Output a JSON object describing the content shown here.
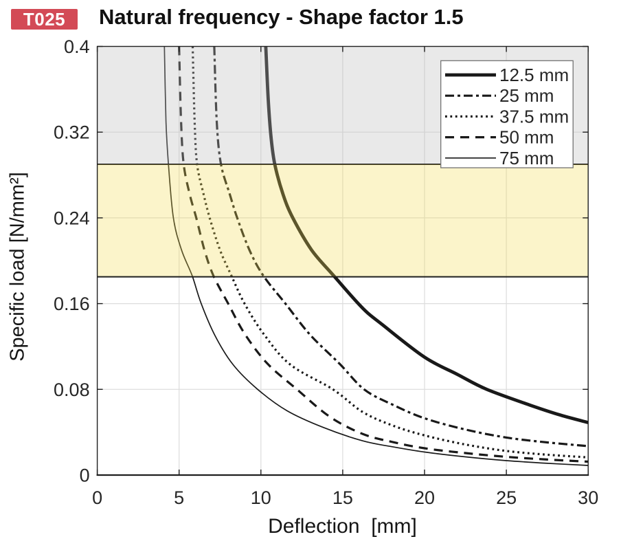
{
  "header": {
    "badge": {
      "label": "T025",
      "bg_color": "#d34a56",
      "text_color": "#ffffff"
    },
    "title": "Natural frequency - Shape factor 1.5"
  },
  "chart_data": {
    "type": "line",
    "title": "Natural frequency - Shape factor 1.5",
    "xlabel": "Deflection  [mm]",
    "ylabel": "Specific load [N/mm²]",
    "xlim": [
      0,
      30
    ],
    "ylim": [
      0,
      0.4
    ],
    "xticks": [
      0,
      5,
      10,
      15,
      20,
      25,
      30
    ],
    "xtick_labels": [
      "0",
      "5",
      "10",
      "15",
      "20",
      "25",
      "30"
    ],
    "yticks": [
      0,
      0.08,
      0.16,
      0.24,
      0.32,
      0.4
    ],
    "ytick_labels": [
      "0",
      "0.08",
      "0.16",
      "0.24",
      "0.32",
      "0.4"
    ],
    "grid": true,
    "grid_color": "#dcdcdc",
    "axis_color": "#1f1f1f",
    "curve_color": "#191919",
    "plot_background": "#ffffff",
    "shaded_bands": [
      {
        "y_from": 0.29,
        "y_to": 0.4,
        "overlay_fill": "rgba(187,187,187,0.33)",
        "appearance_over_white": "#ececec",
        "edge_color": "#1f1f1f"
      },
      {
        "y_from": 0.185,
        "y_to": 0.29,
        "overlay_fill": "rgba(242,219,85,0.31)",
        "appearance_over_white": "#faf1c9",
        "edge_color": "#1f1f1f"
      }
    ],
    "legend": {
      "position": "top-right",
      "border_color": "#737373",
      "background": "#ffffff",
      "entries": [
        "12.5 mm",
        "25 mm",
        "37.5 mm",
        "50 mm",
        "75 mm"
      ]
    },
    "series": [
      {
        "name": "12.5 mm",
        "line_style": "solid-thick",
        "line_width": 4.8,
        "dash": null,
        "points": [
          [
            10.3,
            0.4
          ],
          [
            10.45,
            0.35
          ],
          [
            10.62,
            0.315
          ],
          [
            10.85,
            0.29
          ],
          [
            11.35,
            0.262
          ],
          [
            11.95,
            0.24
          ],
          [
            13.1,
            0.21
          ],
          [
            14.45,
            0.186
          ],
          [
            16.2,
            0.156
          ],
          [
            17.45,
            0.14
          ],
          [
            20,
            0.11
          ],
          [
            22,
            0.094
          ],
          [
            23.8,
            0.08
          ],
          [
            26.5,
            0.065
          ],
          [
            28.3,
            0.056
          ],
          [
            30,
            0.049
          ]
        ]
      },
      {
        "name": "25 mm",
        "line_style": "dash-dot",
        "line_width": 3.2,
        "dash": "13 5 4 5",
        "points": [
          [
            7.15,
            0.4
          ],
          [
            7.3,
            0.33
          ],
          [
            7.56,
            0.29
          ],
          [
            8.1,
            0.262
          ],
          [
            8.55,
            0.24
          ],
          [
            9.3,
            0.21
          ],
          [
            10.15,
            0.186
          ],
          [
            11.5,
            0.16
          ],
          [
            13,
            0.131
          ],
          [
            14.8,
            0.104
          ],
          [
            16.3,
            0.08
          ],
          [
            18,
            0.066
          ],
          [
            20,
            0.053
          ],
          [
            22.5,
            0.0425
          ],
          [
            25,
            0.035
          ],
          [
            27.5,
            0.0305
          ],
          [
            30,
            0.027
          ]
        ]
      },
      {
        "name": "37.5 mm",
        "line_style": "dotted",
        "line_width": 3.2,
        "dash": "2.8 4.6",
        "points": [
          [
            5.83,
            0.4
          ],
          [
            5.95,
            0.33
          ],
          [
            6.1,
            0.29
          ],
          [
            6.5,
            0.262
          ],
          [
            6.87,
            0.24
          ],
          [
            7.5,
            0.21
          ],
          [
            8.2,
            0.186
          ],
          [
            9,
            0.16
          ],
          [
            10.2,
            0.131
          ],
          [
            11.8,
            0.103
          ],
          [
            14.4,
            0.08
          ],
          [
            16.2,
            0.059
          ],
          [
            18,
            0.0465
          ],
          [
            20,
            0.037
          ],
          [
            22.5,
            0.0285
          ],
          [
            25,
            0.0225
          ],
          [
            27.5,
            0.019
          ],
          [
            30,
            0.0165
          ]
        ]
      },
      {
        "name": "50 mm",
        "line_style": "dashed",
        "line_width": 3.2,
        "dash": "13 9",
        "points": [
          [
            5,
            0.4
          ],
          [
            5.12,
            0.33
          ],
          [
            5.28,
            0.29
          ],
          [
            5.65,
            0.262
          ],
          [
            6.05,
            0.24
          ],
          [
            6.55,
            0.21
          ],
          [
            7.1,
            0.186
          ],
          [
            8,
            0.16
          ],
          [
            9,
            0.132
          ],
          [
            10.4,
            0.104
          ],
          [
            12.2,
            0.08
          ],
          [
            14.2,
            0.0545
          ],
          [
            16.2,
            0.0385
          ],
          [
            18,
            0.031
          ],
          [
            20,
            0.025
          ],
          [
            22.5,
            0.0205
          ],
          [
            25,
            0.017
          ],
          [
            27.5,
            0.0145
          ],
          [
            30,
            0.0125
          ]
        ]
      },
      {
        "name": "75 mm",
        "line_style": "solid-thin",
        "line_width": 1.7,
        "dash": null,
        "points": [
          [
            4.1,
            0.4
          ],
          [
            4.2,
            0.33
          ],
          [
            4.35,
            0.29
          ],
          [
            4.65,
            0.24
          ],
          [
            5.15,
            0.21
          ],
          [
            5.8,
            0.186
          ],
          [
            6.35,
            0.16
          ],
          [
            7.2,
            0.13
          ],
          [
            8.3,
            0.103
          ],
          [
            9.8,
            0.08
          ],
          [
            11.6,
            0.06
          ],
          [
            13.8,
            0.0445
          ],
          [
            16.2,
            0.032
          ],
          [
            18,
            0.0265
          ],
          [
            20,
            0.0215
          ],
          [
            22.5,
            0.017
          ],
          [
            25,
            0.0135
          ],
          [
            27.5,
            0.011
          ],
          [
            30,
            0.009
          ]
        ]
      }
    ]
  }
}
